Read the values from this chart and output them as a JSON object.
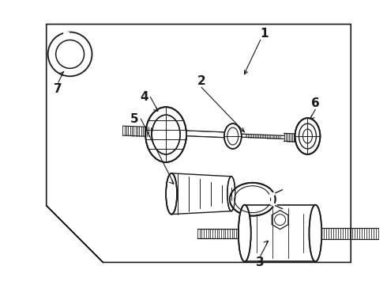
{
  "bg_color": "#ffffff",
  "line_color": "#1a1a1a",
  "fig_width": 4.9,
  "fig_height": 3.6,
  "dpi": 100,
  "label_fontsize": 11,
  "label_fontweight": "bold"
}
